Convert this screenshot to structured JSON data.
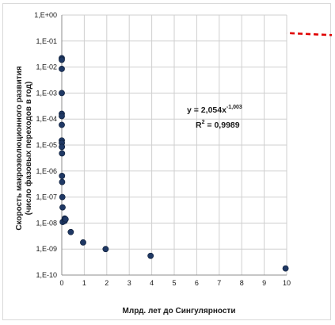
{
  "chart_data": {
    "type": "scatter",
    "title": "",
    "xlabel": "Млрд. лет до Сингулярности",
    "ylabel_lines": [
      "Скорость макроэволюционного развития",
      "(число фазовых переходов в год)"
    ],
    "x_scale": "linear",
    "y_scale": "log",
    "xlim": [
      0,
      10
    ],
    "ylim": [
      1e-10,
      1
    ],
    "x_ticks": [
      0,
      1,
      2,
      3,
      4,
      5,
      6,
      7,
      8,
      9,
      10
    ],
    "x_tick_labels": [
      "0",
      "1",
      "2",
      "3",
      "4",
      "5",
      "6",
      "7",
      "8",
      "9",
      "10"
    ],
    "y_ticks": [
      1.0,
      0.1,
      0.01,
      0.001,
      0.0001,
      1e-05,
      1e-06,
      1e-07,
      1e-08,
      1e-09,
      1e-10
    ],
    "y_tick_labels": [
      "1,E+00",
      "1,E-01",
      "1,E-02",
      "1,E-03",
      "1,E-04",
      "1,E-05",
      "1,E-06",
      "1,E-07",
      "1,E-08",
      "1,E-09",
      "1,E-10"
    ],
    "grid": true,
    "series": [
      {
        "marker_color": "#1f3864",
        "x": [
          5e-05,
          0.0001,
          0.00013,
          0.0003,
          0.0005,
          0.0006,
          0.0007,
          0.0009,
          0.0025,
          0.005,
          0.01,
          0.01,
          0.015,
          0.025,
          0.035,
          0.04,
          0.13,
          0.13,
          0.17,
          0.4,
          0.95,
          1.95,
          3.95,
          9.95
        ],
        "y": [
          0.022,
          0.019,
          0.0085,
          0.001,
          0.00016,
          0.00013,
          6e-05,
          1.5e-05,
          1.2e-05,
          8.5e-06,
          4.8e-06,
          6.5e-07,
          3.8e-07,
          1e-07,
          4e-08,
          1.1e-08,
          1.5e-08,
          1.2e-08,
          1.4e-08,
          4.5e-09,
          1.8e-09,
          1e-09,
          5.5e-10,
          1.8e-10
        ]
      }
    ],
    "trendline": {
      "color": "#e00000",
      "style": "dashed",
      "coef": 2.054,
      "exponent": -1.003,
      "equation_prefix": "y = 2,054x",
      "equation_exponent": "-1,003",
      "r2_prefix": "R",
      "r2_sup": "2",
      "r2_suffix": " = 0,9989"
    }
  }
}
